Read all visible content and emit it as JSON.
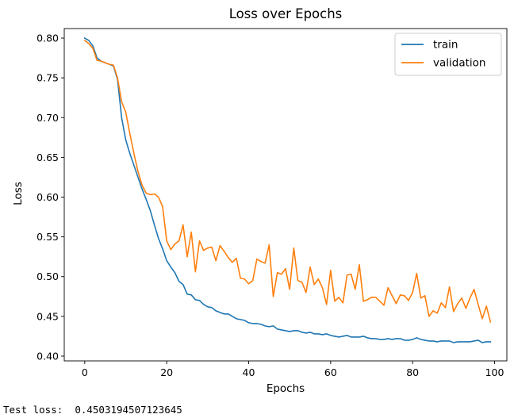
{
  "chart_data": {
    "type": "line",
    "title": "Loss over Epochs",
    "xlabel": "Epochs",
    "ylabel": "Loss",
    "xlim": [
      -5,
      103
    ],
    "ylim": [
      0.394,
      0.812
    ],
    "xticks": [
      0,
      20,
      40,
      60,
      80,
      100
    ],
    "xtick_labels": [
      "0",
      "20",
      "40",
      "60",
      "80",
      "100"
    ],
    "yticks": [
      0.4,
      0.45,
      0.5,
      0.55,
      0.6,
      0.65,
      0.7,
      0.75,
      0.8
    ],
    "ytick_labels": [
      "0.40",
      "0.45",
      "0.50",
      "0.55",
      "0.60",
      "0.65",
      "0.70",
      "0.75",
      "0.80"
    ],
    "grid": false,
    "legend_position": "top-right",
    "series": [
      {
        "name": "train",
        "color": "#1f77b4",
        "x": [
          0,
          1,
          2,
          3,
          4,
          5,
          6,
          7,
          8,
          9,
          10,
          11,
          12,
          13,
          14,
          15,
          16,
          17,
          18,
          19,
          20,
          21,
          22,
          23,
          24,
          25,
          26,
          27,
          28,
          29,
          30,
          31,
          32,
          33,
          34,
          35,
          36,
          37,
          38,
          39,
          40,
          41,
          42,
          43,
          44,
          45,
          46,
          47,
          48,
          49,
          50,
          51,
          52,
          53,
          54,
          55,
          56,
          57,
          58,
          59,
          60,
          61,
          62,
          63,
          64,
          65,
          66,
          67,
          68,
          69,
          70,
          71,
          72,
          73,
          74,
          75,
          76,
          77,
          78,
          79,
          80,
          81,
          82,
          83,
          84,
          85,
          86,
          87,
          88,
          89,
          90,
          91,
          92,
          93,
          94,
          95,
          96,
          97,
          98,
          99
        ],
        "values": [
          0.8,
          0.797,
          0.79,
          0.775,
          0.771,
          0.769,
          0.767,
          0.765,
          0.748,
          0.7,
          0.672,
          0.655,
          0.64,
          0.625,
          0.61,
          0.597,
          0.583,
          0.565,
          0.548,
          0.535,
          0.52,
          0.512,
          0.505,
          0.494,
          0.49,
          0.478,
          0.477,
          0.471,
          0.47,
          0.465,
          0.462,
          0.461,
          0.457,
          0.455,
          0.453,
          0.453,
          0.45,
          0.447,
          0.446,
          0.445,
          0.442,
          0.441,
          0.441,
          0.44,
          0.438,
          0.437,
          0.438,
          0.434,
          0.433,
          0.432,
          0.431,
          0.432,
          0.432,
          0.43,
          0.429,
          0.43,
          0.428,
          0.428,
          0.427,
          0.428,
          0.426,
          0.425,
          0.424,
          0.425,
          0.426,
          0.424,
          0.424,
          0.424,
          0.425,
          0.423,
          0.422,
          0.422,
          0.421,
          0.421,
          0.422,
          0.421,
          0.422,
          0.422,
          0.42,
          0.42,
          0.421,
          0.423,
          0.421,
          0.42,
          0.419,
          0.419,
          0.418,
          0.419,
          0.419,
          0.419,
          0.417,
          0.418,
          0.418,
          0.418,
          0.418,
          0.419,
          0.42,
          0.417,
          0.418,
          0.418
        ]
      },
      {
        "name": "validation",
        "color": "#ff7f0e",
        "x": [
          0,
          1,
          2,
          3,
          4,
          5,
          6,
          7,
          8,
          9,
          10,
          11,
          12,
          13,
          14,
          15,
          16,
          17,
          18,
          19,
          20,
          21,
          22,
          23,
          24,
          25,
          26,
          27,
          28,
          29,
          30,
          31,
          32,
          33,
          34,
          35,
          36,
          37,
          38,
          39,
          40,
          41,
          42,
          43,
          44,
          45,
          46,
          47,
          48,
          49,
          50,
          51,
          52,
          53,
          54,
          55,
          56,
          57,
          58,
          59,
          60,
          61,
          62,
          63,
          64,
          65,
          66,
          67,
          68,
          69,
          70,
          71,
          72,
          73,
          74,
          75,
          76,
          77,
          78,
          79,
          80,
          81,
          82,
          83,
          84,
          85,
          86,
          87,
          88,
          89,
          90,
          91,
          92,
          93,
          94,
          95,
          96,
          97,
          98,
          99
        ],
        "values": [
          0.797,
          0.793,
          0.787,
          0.772,
          0.771,
          0.769,
          0.767,
          0.766,
          0.75,
          0.72,
          0.707,
          0.68,
          0.655,
          0.632,
          0.615,
          0.605,
          0.603,
          0.604,
          0.6,
          0.588,
          0.545,
          0.534,
          0.541,
          0.545,
          0.565,
          0.525,
          0.556,
          0.506,
          0.545,
          0.533,
          0.536,
          0.537,
          0.52,
          0.539,
          0.532,
          0.524,
          0.518,
          0.523,
          0.498,
          0.497,
          0.491,
          0.495,
          0.522,
          0.519,
          0.517,
          0.54,
          0.475,
          0.505,
          0.503,
          0.51,
          0.484,
          0.536,
          0.495,
          0.493,
          0.48,
          0.512,
          0.49,
          0.497,
          0.486,
          0.465,
          0.508,
          0.469,
          0.474,
          0.467,
          0.502,
          0.503,
          0.484,
          0.515,
          0.469,
          0.471,
          0.474,
          0.474,
          0.469,
          0.464,
          0.486,
          0.476,
          0.466,
          0.477,
          0.476,
          0.47,
          0.48,
          0.504,
          0.473,
          0.476,
          0.45,
          0.457,
          0.454,
          0.467,
          0.461,
          0.487,
          0.456,
          0.466,
          0.473,
          0.46,
          0.473,
          0.484,
          0.465,
          0.447,
          0.463,
          0.443
        ]
      }
    ]
  },
  "output": {
    "label": "Test loss:",
    "value": "0.4503194507123645"
  }
}
